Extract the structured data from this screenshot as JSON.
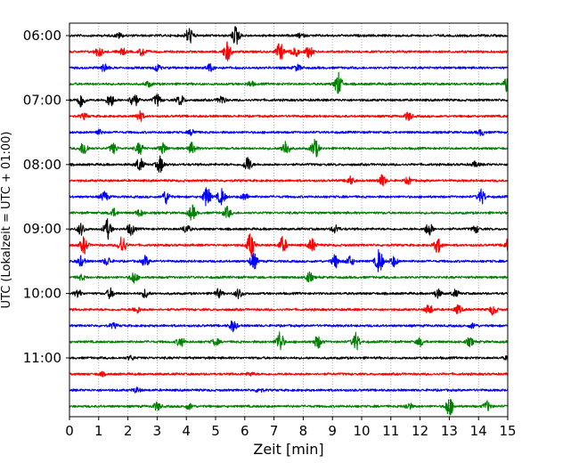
{
  "chart_data": {
    "type": "line",
    "subtype": "helicorder",
    "xlabel": "Zeit  [min]",
    "ylabel": "UTC (Lokalzeit = UTC + 01:00)",
    "xlim": [
      0,
      15
    ],
    "x_ticks": [
      "0",
      "1",
      "2",
      "3",
      "4",
      "5",
      "6",
      "7",
      "8",
      "9",
      "10",
      "11",
      "12",
      "13",
      "14",
      "15"
    ],
    "y_ticks": [
      {
        "label": "06:00",
        "row": 0
      },
      {
        "label": "07:00",
        "row": 4
      },
      {
        "label": "08:00",
        "row": 8
      },
      {
        "label": "09:00",
        "row": 12
      },
      {
        "label": "10:00",
        "row": 16
      },
      {
        "label": "11:00",
        "row": 20
      }
    ],
    "grid": {
      "x": true,
      "y": false,
      "style": "dotted"
    },
    "trace_colors": [
      "#000000",
      "#ff0000",
      "#0000ff",
      "#008000"
    ],
    "rows": [
      {
        "index": 0,
        "start": "06:00",
        "color": "#000000",
        "events": [
          [
            4.1,
            1.0
          ],
          [
            5.7,
            1.2
          ],
          [
            1.7,
            0.3
          ],
          [
            7.9,
            0.25
          ]
        ]
      },
      {
        "index": 1,
        "start": "06:15",
        "color": "#ff0000",
        "events": [
          [
            1.0,
            0.6
          ],
          [
            1.8,
            0.4
          ],
          [
            2.5,
            0.5
          ],
          [
            5.4,
            1.2
          ],
          [
            7.2,
            1.1
          ],
          [
            7.7,
            0.8
          ],
          [
            8.2,
            0.7
          ]
        ]
      },
      {
        "index": 2,
        "start": "06:30",
        "color": "#0000ff",
        "events": [
          [
            1.2,
            0.5
          ],
          [
            3.0,
            0.4
          ],
          [
            4.8,
            0.45
          ],
          [
            7.8,
            0.35
          ]
        ]
      },
      {
        "index": 3,
        "start": "06:45",
        "color": "#008000",
        "events": [
          [
            2.7,
            0.3
          ],
          [
            6.2,
            0.3
          ],
          [
            9.2,
            1.4
          ],
          [
            15.0,
            1.1
          ]
        ]
      },
      {
        "index": 4,
        "start": "07:00",
        "color": "#000000",
        "events": [
          [
            0.4,
            0.9
          ],
          [
            1.4,
            0.8
          ],
          [
            2.2,
            1.0
          ],
          [
            3.0,
            0.7
          ],
          [
            3.8,
            0.6
          ],
          [
            5.2,
            0.5
          ]
        ]
      },
      {
        "index": 5,
        "start": "07:15",
        "color": "#ff0000",
        "events": [
          [
            0.5,
            0.3
          ],
          [
            2.4,
            0.6
          ],
          [
            11.6,
            0.5
          ]
        ]
      },
      {
        "index": 6,
        "start": "07:30",
        "color": "#0000ff",
        "events": [
          [
            1.0,
            0.3
          ],
          [
            4.2,
            0.35
          ],
          [
            14.1,
            0.35
          ]
        ]
      },
      {
        "index": 7,
        "start": "07:45",
        "color": "#008000",
        "events": [
          [
            0.5,
            0.9
          ],
          [
            1.5,
            0.6
          ],
          [
            2.4,
            0.7
          ],
          [
            3.2,
            0.6
          ],
          [
            4.2,
            0.7
          ],
          [
            7.4,
            1.0
          ],
          [
            8.4,
            1.2
          ]
        ]
      },
      {
        "index": 8,
        "start": "08:00",
        "color": "#000000",
        "events": [
          [
            2.4,
            0.8
          ],
          [
            3.1,
            1.0
          ],
          [
            6.1,
            1.0
          ],
          [
            13.9,
            0.3
          ]
        ]
      },
      {
        "index": 9,
        "start": "08:15",
        "color": "#ff0000",
        "events": [
          [
            9.6,
            0.5
          ],
          [
            10.7,
            0.7
          ],
          [
            11.6,
            0.4
          ]
        ]
      },
      {
        "index": 10,
        "start": "08:30",
        "color": "#0000ff",
        "events": [
          [
            1.2,
            0.6
          ],
          [
            3.3,
            0.8
          ],
          [
            4.7,
            1.2
          ],
          [
            5.2,
            1.0
          ],
          [
            6.0,
            0.4
          ],
          [
            14.1,
            0.9
          ]
        ]
      },
      {
        "index": 11,
        "start": "08:45",
        "color": "#008000",
        "events": [
          [
            1.5,
            0.5
          ],
          [
            2.4,
            0.4
          ],
          [
            4.2,
            0.9
          ],
          [
            5.4,
            0.7
          ]
        ]
      },
      {
        "index": 12,
        "start": "09:00",
        "color": "#000000",
        "events": [
          [
            0.4,
            0.7
          ],
          [
            1.3,
            1.2
          ],
          [
            2.1,
            0.7
          ],
          [
            4.0,
            0.5
          ],
          [
            9.1,
            0.5
          ],
          [
            12.3,
            0.8
          ],
          [
            13.9,
            0.4
          ]
        ]
      },
      {
        "index": 13,
        "start": "09:15",
        "color": "#ff0000",
        "events": [
          [
            0.5,
            1.0
          ],
          [
            1.8,
            1.2
          ],
          [
            6.2,
            1.5
          ],
          [
            7.3,
            1.0
          ],
          [
            8.3,
            0.8
          ],
          [
            12.6,
            0.9
          ],
          [
            15.0,
            0.7
          ]
        ]
      },
      {
        "index": 14,
        "start": "09:30",
        "color": "#0000ff",
        "events": [
          [
            0.4,
            0.6
          ],
          [
            1.3,
            0.5
          ],
          [
            2.6,
            0.6
          ],
          [
            6.3,
            1.0
          ],
          [
            9.1,
            0.8
          ],
          [
            9.6,
            0.6
          ],
          [
            10.6,
            1.5
          ],
          [
            11.1,
            0.6
          ]
        ]
      },
      {
        "index": 15,
        "start": "09:45",
        "color": "#008000",
        "events": [
          [
            0.4,
            0.3
          ],
          [
            2.2,
            0.7
          ],
          [
            8.2,
            0.6
          ]
        ]
      },
      {
        "index": 16,
        "start": "10:00",
        "color": "#000000",
        "events": [
          [
            0.3,
            0.4
          ],
          [
            1.4,
            0.6
          ],
          [
            2.6,
            0.5
          ],
          [
            5.1,
            0.5
          ],
          [
            5.8,
            0.6
          ],
          [
            12.6,
            0.5
          ],
          [
            13.2,
            0.4
          ]
        ]
      },
      {
        "index": 17,
        "start": "10:15",
        "color": "#ff0000",
        "events": [
          [
            2.3,
            0.4
          ],
          [
            12.3,
            0.6
          ],
          [
            13.3,
            0.5
          ],
          [
            14.5,
            0.6
          ]
        ]
      },
      {
        "index": 18,
        "start": "10:30",
        "color": "#0000ff",
        "events": [
          [
            1.5,
            0.3
          ],
          [
            5.6,
            0.7
          ],
          [
            13.8,
            0.3
          ]
        ]
      },
      {
        "index": 19,
        "start": "10:45",
        "color": "#008000",
        "events": [
          [
            3.8,
            0.6
          ],
          [
            5.0,
            0.4
          ],
          [
            7.2,
            1.3
          ],
          [
            8.5,
            0.8
          ],
          [
            9.8,
            1.1
          ],
          [
            12.0,
            0.5
          ],
          [
            13.7,
            0.5
          ]
        ]
      },
      {
        "index": 20,
        "start": "11:00",
        "color": "#000000",
        "events": [
          [
            2.1,
            0.25
          ],
          [
            15.0,
            0.25
          ]
        ]
      },
      {
        "index": 21,
        "start": "11:15",
        "color": "#ff0000",
        "events": [
          [
            1.1,
            0.2
          ],
          [
            6.2,
            0.2
          ]
        ]
      },
      {
        "index": 22,
        "start": "11:30",
        "color": "#0000ff",
        "events": [
          [
            2.3,
            0.3
          ],
          [
            6.5,
            0.25
          ]
        ]
      },
      {
        "index": 23,
        "start": "11:45",
        "color": "#008000",
        "events": [
          [
            3.0,
            0.5
          ],
          [
            4.1,
            0.35
          ],
          [
            11.6,
            0.4
          ],
          [
            13.0,
            1.2
          ],
          [
            14.3,
            0.6
          ]
        ]
      }
    ]
  }
}
